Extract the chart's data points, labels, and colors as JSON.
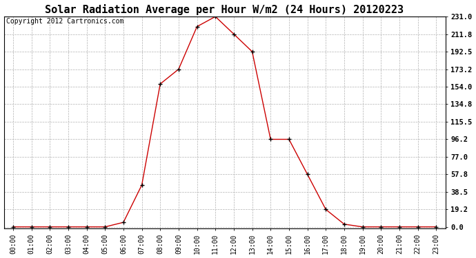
{
  "title": "Solar Radiation Average per Hour W/m2 (24 Hours) 20120223",
  "copyright_text": "Copyright 2012 Cartronics.com",
  "hours": [
    "00:00",
    "01:00",
    "02:00",
    "03:00",
    "04:00",
    "05:00",
    "06:00",
    "07:00",
    "08:00",
    "09:00",
    "10:00",
    "11:00",
    "12:00",
    "13:00",
    "14:00",
    "15:00",
    "16:00",
    "17:00",
    "18:00",
    "19:00",
    "20:00",
    "21:00",
    "22:00",
    "23:00"
  ],
  "values": [
    0.0,
    0.0,
    0.0,
    0.0,
    0.0,
    0.0,
    5.0,
    46.0,
    157.0,
    173.2,
    220.0,
    231.0,
    211.8,
    192.5,
    96.2,
    96.2,
    57.8,
    19.2,
    3.0,
    0.0,
    0.0,
    0.0,
    0.0,
    0.0
  ],
  "line_color": "#cc0000",
  "marker": "+",
  "marker_color": "#000000",
  "background_color": "#ffffff",
  "plot_bg_color": "#ffffff",
  "grid_color": "#b0b0b0",
  "ytick_labels": [
    "0.0",
    "19.2",
    "38.5",
    "57.8",
    "77.0",
    "96.2",
    "115.5",
    "134.8",
    "154.0",
    "173.2",
    "192.5",
    "211.8",
    "231.0"
  ],
  "ytick_values": [
    0.0,
    19.2,
    38.5,
    57.8,
    77.0,
    96.2,
    115.5,
    134.8,
    154.0,
    173.2,
    192.5,
    211.8,
    231.0
  ],
  "ymax": 231.0,
  "ymin": 0.0,
  "title_fontsize": 11,
  "copyright_fontsize": 7,
  "xtick_fontsize": 7,
  "ytick_fontsize": 7.5
}
